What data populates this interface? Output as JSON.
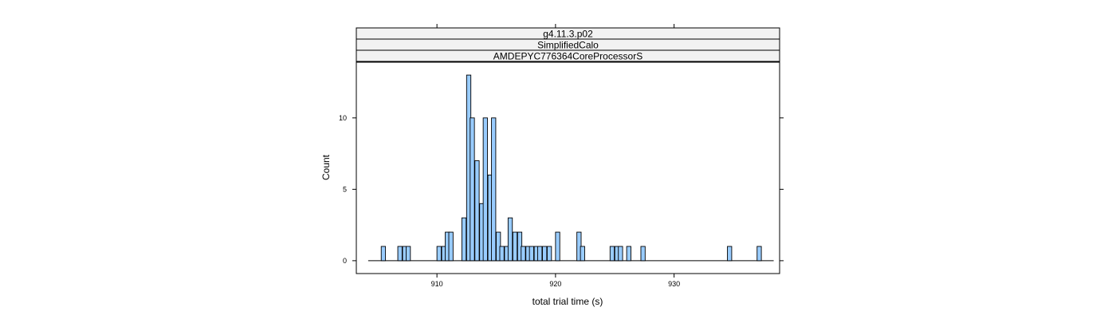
{
  "chart_data": {
    "type": "bar",
    "panel_strips": [
      "g4.11.3.p02",
      "SimplifiedCalo",
      "AMDEPYC776364CoreProcessorS"
    ],
    "xlabel": "total trial time (s)",
    "ylabel": "Count",
    "xlim": [
      903.2,
      938.9
    ],
    "ylim": [
      -0.9,
      13.9
    ],
    "x_ticks": [
      910,
      920,
      930
    ],
    "y_ticks": [
      0,
      5,
      10
    ],
    "x_tick_labels": [
      "910",
      "920",
      "930"
    ],
    "y_tick_labels": [
      "0",
      "5",
      "10"
    ],
    "baseline": [
      904.2,
      938.4
    ],
    "bin_width": 0.36,
    "bin_starts": [
      905.3,
      906.7,
      907.1,
      907.4,
      910.0,
      910.4,
      910.7,
      911.0,
      912.1,
      912.5,
      912.8,
      913.2,
      913.6,
      913.9,
      914.3,
      914.6,
      915.0,
      915.3,
      915.7,
      916.0,
      916.4,
      916.8,
      917.1,
      917.5,
      917.8,
      918.2,
      918.5,
      918.9,
      919.3,
      920.0,
      921.8,
      922.1,
      924.6,
      925.0,
      925.3,
      926.0,
      927.2,
      934.5,
      937.0
    ],
    "counts": [
      1,
      1,
      1,
      1,
      1,
      1,
      2,
      2,
      3,
      13,
      10,
      7,
      4,
      10,
      6,
      10,
      2,
      1,
      1,
      3,
      2,
      2,
      1,
      1,
      1,
      1,
      1,
      1,
      1,
      2,
      2,
      1,
      1,
      1,
      1,
      1,
      1,
      1,
      1
    ],
    "colors": {
      "bar_fill": "#99ccff",
      "bar_stroke": "#000000",
      "strip_fill": "#f2f2f2",
      "axis": "#000000"
    },
    "grid": false,
    "legend": "none"
  }
}
